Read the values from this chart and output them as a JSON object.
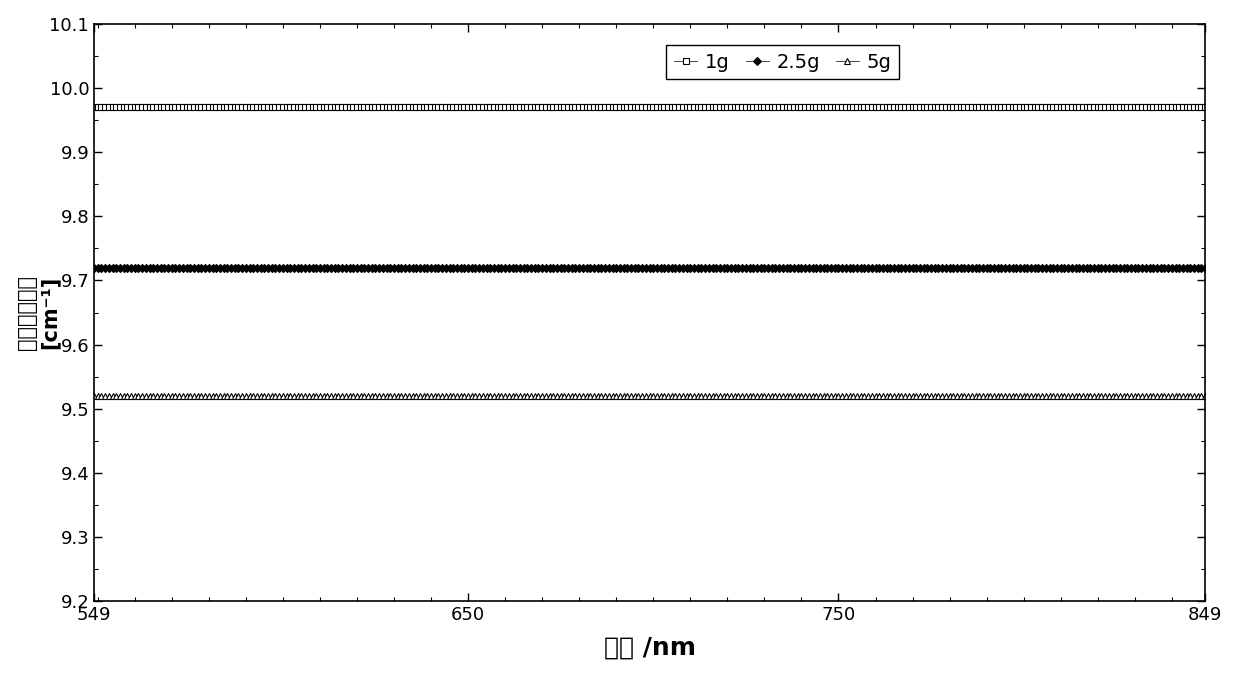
{
  "x_start": 549,
  "x_end": 849,
  "y_1g": 9.97,
  "y_2_5g": 9.72,
  "y_5g": 9.52,
  "ylim": [
    9.2,
    10.1
  ],
  "yticks": [
    9.2,
    9.3,
    9.4,
    9.5,
    9.6,
    9.7,
    9.8,
    9.9,
    10.0,
    10.1
  ],
  "xticks": [
    549,
    650,
    750,
    849
  ],
  "xlabel": "波长 /nm",
  "ylabel_line1": "约化散射系数",
  "ylabel_line2": "[cm⁻¹]",
  "legend_1g": "1g",
  "legend_2_5g": "2.5g",
  "legend_5g": "5g",
  "marker_1g": "s",
  "marker_2_5g": "D",
  "marker_5g": "^",
  "color": "#000000",
  "markersize": 4,
  "linewidth": 0.5,
  "n_points": 301,
  "background": "#ffffff",
  "figsize": [
    12.39,
    6.76
  ],
  "dpi": 100
}
